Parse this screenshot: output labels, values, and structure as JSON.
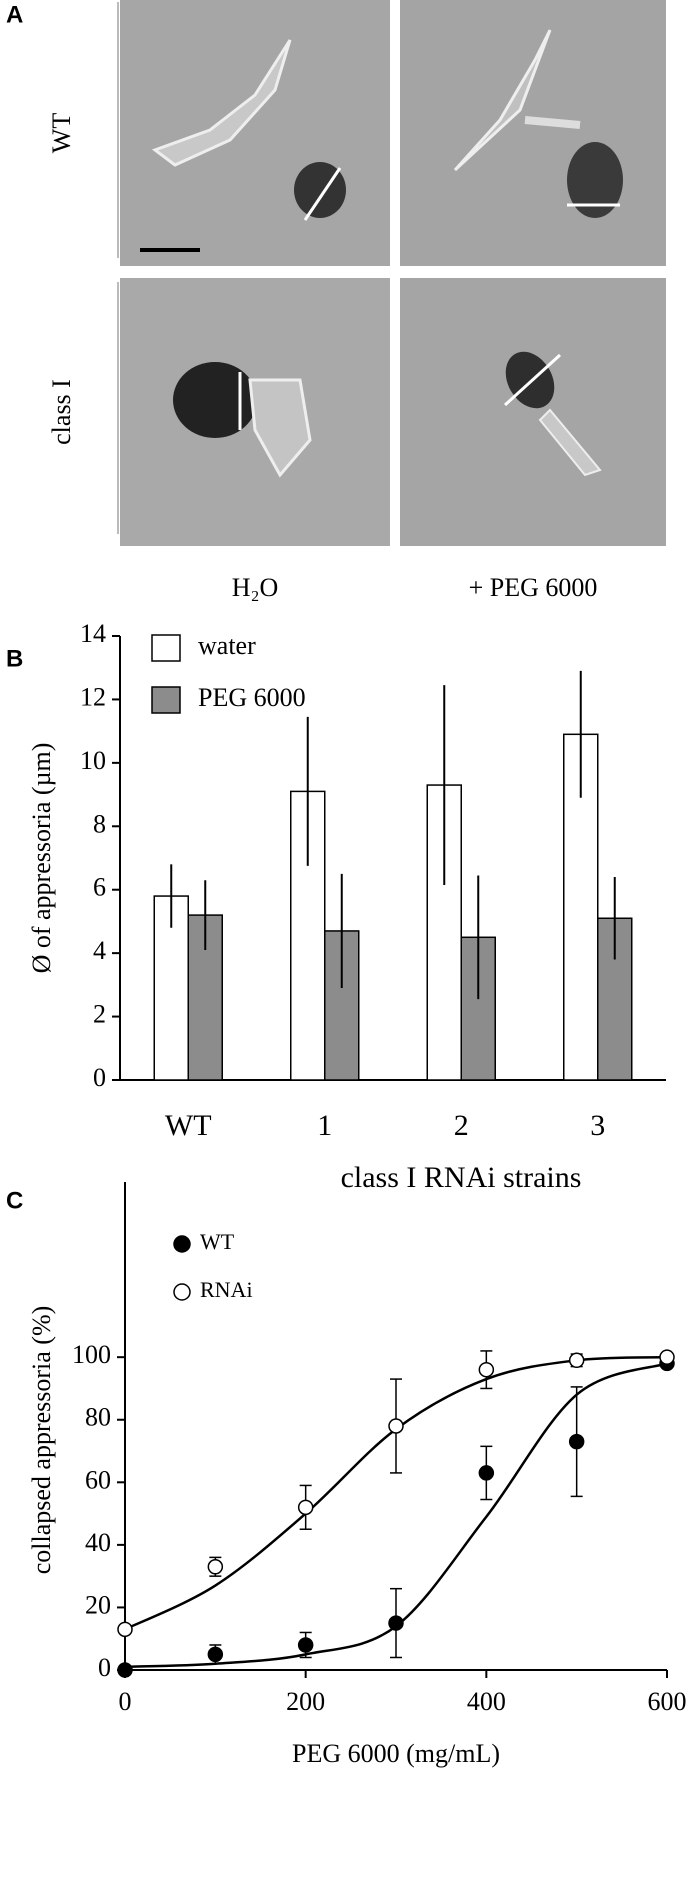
{
  "panel_a": {
    "panel": "A",
    "rows": [
      "WT",
      "class I"
    ],
    "columns": [
      "H₂O",
      "+ PEG 6000"
    ]
  },
  "chart_data": [
    {
      "type": "bar",
      "panel": "B",
      "ylabel": "Ø of appressoria (µm)",
      "xlabel": "class I RNAi strains",
      "categories": [
        "WT",
        "1",
        "2",
        "3"
      ],
      "series": [
        {
          "name": "water",
          "color": "#ffffff",
          "values": [
            5.8,
            9.1,
            9.3,
            10.9
          ],
          "errors": [
            1.0,
            2.35,
            3.15,
            2.0
          ]
        },
        {
          "name": "PEG 6000",
          "color": "#8c8c8c",
          "values": [
            5.2,
            4.7,
            4.5,
            5.1
          ],
          "errors": [
            1.1,
            1.8,
            1.95,
            1.3
          ]
        }
      ],
      "ylim": [
        0,
        14
      ],
      "yticks": [
        0,
        2,
        4,
        6,
        8,
        10,
        12,
        14
      ],
      "legend": "top-left"
    },
    {
      "type": "scatter",
      "panel": "C",
      "xlabel": "PEG 6000 (mg/mL)",
      "ylabel": "collapsed appressoria (%)",
      "x": [
        0,
        100,
        200,
        300,
        400,
        500,
        600
      ],
      "series": [
        {
          "name": "WT",
          "color": "#000000",
          "filled": true,
          "values": [
            0,
            5,
            8,
            15,
            63,
            73,
            98
          ],
          "errors": [
            0,
            3,
            4,
            11,
            8.5,
            17.5,
            0
          ],
          "fit": [
            1,
            2,
            5,
            14,
            49,
            88,
            98
          ]
        },
        {
          "name": "RNAi",
          "color": "#000000",
          "filled": false,
          "values": [
            13,
            33,
            52,
            78,
            96,
            99,
            100
          ],
          "errors": [
            0,
            3,
            7,
            15,
            6,
            2,
            1
          ],
          "fit": [
            13,
            27,
            50,
            77,
            93,
            99,
            100
          ]
        }
      ],
      "xlim": [
        0,
        600
      ],
      "xticks": [
        0,
        200,
        400,
        600
      ],
      "ylim": [
        0,
        156
      ],
      "yticks": [
        0,
        20,
        40,
        60,
        80,
        100
      ],
      "legend": "top-left"
    }
  ]
}
